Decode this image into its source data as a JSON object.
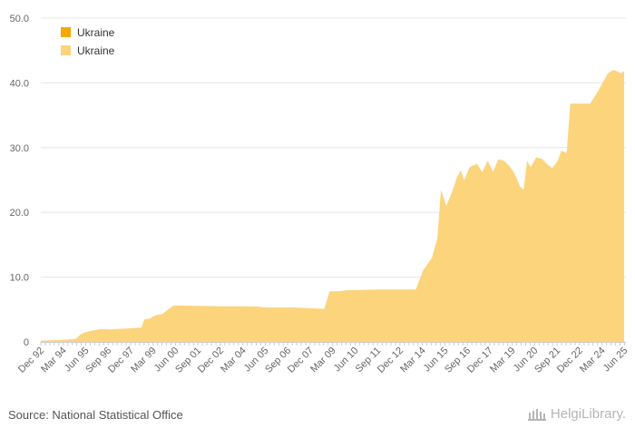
{
  "chart_data": {
    "type": "area",
    "title": "",
    "xlabel": "",
    "ylabel": "",
    "ylim": [
      0,
      50
    ],
    "y_ticks": [
      0,
      10,
      20,
      30,
      40,
      50
    ],
    "y_tick_labels": [
      "0",
      "10.0",
      "20.0",
      "30.0",
      "40.0",
      "50.0"
    ],
    "x_start": 1992.917,
    "x_end": 2025.5,
    "x_ticks": [
      {
        "label": "Dec 92",
        "t": 1992.917
      },
      {
        "label": "Mar 94",
        "t": 1994.167
      },
      {
        "label": "Jun 95",
        "t": 1995.417
      },
      {
        "label": "Sep 96",
        "t": 1996.667
      },
      {
        "label": "Dec 97",
        "t": 1997.917
      },
      {
        "label": "Mar 99",
        "t": 1999.167
      },
      {
        "label": "Jun 00",
        "t": 2000.417
      },
      {
        "label": "Sep 01",
        "t": 2001.667
      },
      {
        "label": "Dec 02",
        "t": 2002.917
      },
      {
        "label": "Mar 04",
        "t": 2004.167
      },
      {
        "label": "Jun 05",
        "t": 2005.417
      },
      {
        "label": "Sep 06",
        "t": 2006.667
      },
      {
        "label": "Dec 07",
        "t": 2007.917
      },
      {
        "label": "Mar 09",
        "t": 2009.167
      },
      {
        "label": "Jun 10",
        "t": 2010.417
      },
      {
        "label": "Sep 11",
        "t": 2011.667
      },
      {
        "label": "Dec 12",
        "t": 2012.917
      },
      {
        "label": "Mar 14",
        "t": 2014.167
      },
      {
        "label": "Jun 15",
        "t": 2015.417
      },
      {
        "label": "Sep 16",
        "t": 2016.667
      },
      {
        "label": "Dec 17",
        "t": 2017.917
      },
      {
        "label": "Mar 19",
        "t": 2019.167
      },
      {
        "label": "Jun 20",
        "t": 2020.417
      },
      {
        "label": "Sep 21",
        "t": 2021.667
      },
      {
        "label": "Dec 22",
        "t": 2022.917
      },
      {
        "label": "Mar 24",
        "t": 2024.167
      },
      {
        "label": "Jun 25",
        "t": 2025.417
      }
    ],
    "legend": [
      {
        "name": "Ukraine",
        "color": "#f5a800"
      },
      {
        "name": "Ukraine",
        "color": "#fcd47c"
      }
    ],
    "legend_position": "top-left",
    "series": [
      {
        "name": "Ukraine",
        "color": "#fcd47c",
        "points": [
          [
            1992.92,
            0.2
          ],
          [
            1993.5,
            0.25
          ],
          [
            1994.0,
            0.3
          ],
          [
            1994.6,
            0.4
          ],
          [
            1994.9,
            0.5
          ],
          [
            1995.1,
            1.1
          ],
          [
            1995.4,
            1.5
          ],
          [
            1995.9,
            1.8
          ],
          [
            1996.3,
            2.0
          ],
          [
            1996.8,
            1.9
          ],
          [
            1997.2,
            2.0
          ],
          [
            1997.9,
            2.1
          ],
          [
            1998.5,
            2.2
          ],
          [
            1998.7,
            3.5
          ],
          [
            1999.0,
            3.6
          ],
          [
            1999.3,
            4.1
          ],
          [
            1999.7,
            4.3
          ],
          [
            2000.0,
            5.0
          ],
          [
            2000.3,
            5.6
          ],
          [
            2001.0,
            5.6
          ],
          [
            2002.0,
            5.55
          ],
          [
            2003.0,
            5.5
          ],
          [
            2004.0,
            5.5
          ],
          [
            2005.0,
            5.45
          ],
          [
            2005.5,
            5.3
          ],
          [
            2006.0,
            5.3
          ],
          [
            2007.0,
            5.3
          ],
          [
            2008.0,
            5.2
          ],
          [
            2008.7,
            5.1
          ],
          [
            2009.0,
            7.8
          ],
          [
            2009.5,
            7.8
          ],
          [
            2010.0,
            8.0
          ],
          [
            2010.5,
            8.0
          ],
          [
            2011.0,
            8.05
          ],
          [
            2012.0,
            8.1
          ],
          [
            2013.0,
            8.1
          ],
          [
            2013.8,
            8.1
          ],
          [
            2014.2,
            11.0
          ],
          [
            2014.7,
            13.0
          ],
          [
            2015.0,
            16.0
          ],
          [
            2015.2,
            23.5
          ],
          [
            2015.5,
            21.0
          ],
          [
            2015.8,
            23.0
          ],
          [
            2016.1,
            25.5
          ],
          [
            2016.3,
            26.5
          ],
          [
            2016.5,
            25.0
          ],
          [
            2016.8,
            27.0
          ],
          [
            2017.2,
            27.5
          ],
          [
            2017.5,
            26.2
          ],
          [
            2017.8,
            28.0
          ],
          [
            2018.1,
            26.3
          ],
          [
            2018.4,
            28.2
          ],
          [
            2018.7,
            28.0
          ],
          [
            2019.0,
            27.2
          ],
          [
            2019.3,
            26.0
          ],
          [
            2019.6,
            24.0
          ],
          [
            2019.8,
            23.5
          ],
          [
            2020.0,
            28.0
          ],
          [
            2020.2,
            27.0
          ],
          [
            2020.5,
            28.5
          ],
          [
            2020.8,
            28.3
          ],
          [
            2021.1,
            27.5
          ],
          [
            2021.4,
            26.8
          ],
          [
            2021.7,
            28.0
          ],
          [
            2021.9,
            29.5
          ],
          [
            2022.2,
            29.2
          ],
          [
            2022.4,
            36.8
          ],
          [
            2023.0,
            36.8
          ],
          [
            2023.5,
            36.8
          ],
          [
            2023.9,
            38.5
          ],
          [
            2024.2,
            40.0
          ],
          [
            2024.5,
            41.5
          ],
          [
            2024.8,
            42.0
          ],
          [
            2025.0,
            41.8
          ],
          [
            2025.2,
            41.5
          ],
          [
            2025.4,
            41.8
          ]
        ]
      }
    ]
  },
  "footer": {
    "source": "Source: National Statistical Office",
    "logo_text": "HelgiLibrary."
  }
}
